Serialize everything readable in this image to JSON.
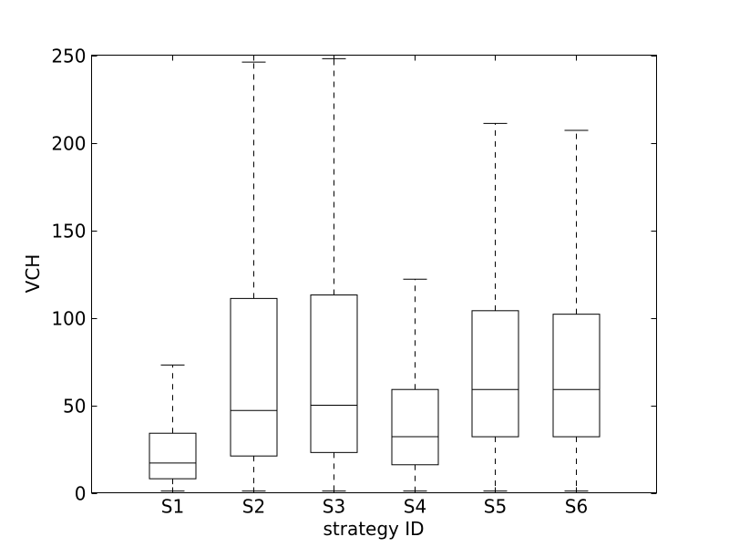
{
  "chart_data": {
    "type": "box",
    "xlabel": "strategy ID",
    "ylabel": "VCH",
    "ylim": [
      0,
      250
    ],
    "yticks": [
      0,
      50,
      100,
      150,
      200,
      250
    ],
    "grid": false,
    "categories": [
      "S1",
      "S2",
      "S3",
      "S4",
      "S5",
      "S6"
    ],
    "boxes": [
      {
        "label": "S1",
        "whisker_low": 1,
        "q1": 8,
        "median": 17,
        "q3": 34,
        "whisker_high": 73
      },
      {
        "label": "S2",
        "whisker_low": 1,
        "q1": 21,
        "median": 47,
        "q3": 111,
        "whisker_high": 246
      },
      {
        "label": "S3",
        "whisker_low": 1,
        "q1": 23,
        "median": 50,
        "q3": 113,
        "whisker_high": 248
      },
      {
        "label": "S4",
        "whisker_low": 1,
        "q1": 16,
        "median": 32,
        "q3": 59,
        "whisker_high": 122
      },
      {
        "label": "S5",
        "whisker_low": 1,
        "q1": 32,
        "median": 59,
        "q3": 104,
        "whisker_high": 211
      },
      {
        "label": "S6",
        "whisker_low": 1,
        "q1": 32,
        "median": 59,
        "q3": 102,
        "whisker_high": 207
      }
    ]
  }
}
